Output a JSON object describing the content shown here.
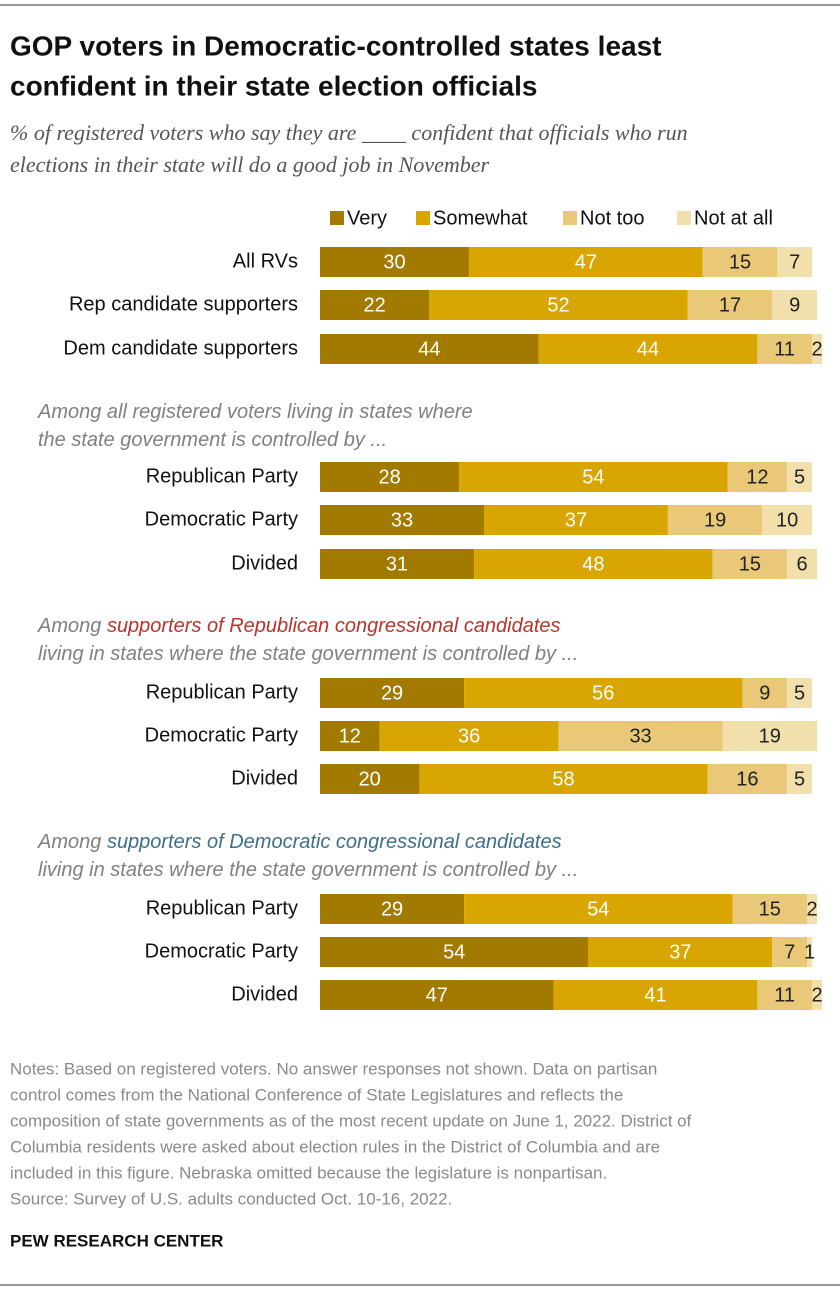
{
  "chart_data": {
    "type": "bar",
    "orientation": "horizontal",
    "stacked": true,
    "title": [
      "GOP voters in Democratic-controlled states least",
      "confident in their state election officials"
    ],
    "subtitle": [
      "% of registered voters who say they are ____ confident that officials who run",
      "elections in their state will do a good job in November"
    ],
    "categories": [
      "All RVs",
      "Rep candidate supporters",
      "Dem candidate supporters",
      "Republican Party",
      "Democratic Party",
      "Divided",
      "Republican Party",
      "Democratic Party",
      "Divided",
      "Republican Party",
      "Democratic Party",
      "Divided"
    ],
    "series": [
      {
        "name": "Very",
        "color": "#a37a00",
        "values": [
          30,
          22,
          44,
          28,
          33,
          31,
          29,
          12,
          20,
          29,
          54,
          47
        ]
      },
      {
        "name": "Somewhat",
        "color": "#d9a500",
        "values": [
          47,
          52,
          44,
          54,
          37,
          48,
          56,
          36,
          58,
          54,
          37,
          41
        ]
      },
      {
        "name": "Not too",
        "color": "#e9c977",
        "values": [
          15,
          17,
          11,
          12,
          19,
          15,
          9,
          33,
          16,
          15,
          7,
          11
        ]
      },
      {
        "name": "Not at all",
        "color": "#f2e0ac",
        "values": [
          7,
          9,
          2,
          5,
          10,
          6,
          5,
          19,
          5,
          2,
          1,
          2
        ]
      }
    ],
    "annotations": [
      {
        "lines": [
          [
            "Among all registered voters living in states where"
          ],
          [
            "the state government is controlled by ..."
          ]
        ]
      },
      {
        "lines": [
          [
            "Among ",
            "supporters of Republican congressional candidates"
          ],
          [
            "living in states where the state government is controlled by ..."
          ]
        ],
        "highlight_color": "#b8342b"
      },
      {
        "lines": [
          [
            "Among ",
            "supporters of Democratic congressional candidates"
          ],
          [
            "living in states where the state government is controlled by ..."
          ]
        ],
        "highlight_color": "#3d6e8c"
      }
    ],
    "notes": [
      "Notes: Based on registered voters. No answer responses not shown. Data on partisan",
      "control comes from the National Conference of State Legislatures and reflects the",
      "composition of state governments as of the most recent update on June 1, 2022. District of",
      "Columbia residents were asked about election rules in the District of Columbia and are",
      "included in this figure. Nebraska omitted because the legislature is nonpartisan."
    ],
    "source": "Source: Survey of U.S. adults conducted Oct. 10-16, 2022.",
    "branding": "PEW RESEARCH CENTER"
  }
}
